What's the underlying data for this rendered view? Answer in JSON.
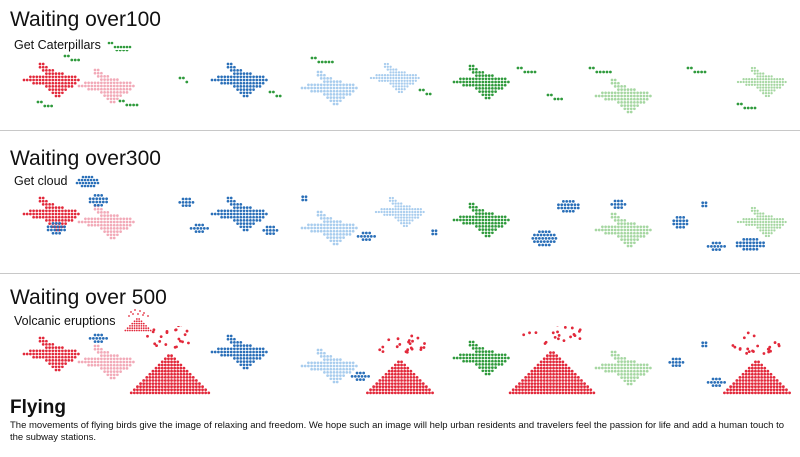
{
  "sections": [
    {
      "title": "Waiting over100",
      "legend": "Get Caterpillars",
      "legend_icon": "caterpillar-icon"
    },
    {
      "title": "Waiting over300",
      "legend": "Get cloud",
      "legend_icon": "cloud-icon"
    },
    {
      "title": "Waiting over 500",
      "legend": "Volcanic eruptions",
      "legend_icon": "volcano-icon"
    }
  ],
  "footer": {
    "title": "Flying",
    "description": "The movements of flying birds give the image of relaxing and freedom. We hope such an image will help urban residents and travelers feel the passion for life and add a human touch to the subway stations."
  },
  "colors": {
    "red": "#e2293b",
    "pink": "#f2aab8",
    "blue": "#2a6fb8",
    "light_blue": "#a9cdee",
    "green": "#2f9a3c",
    "light_green": "#a6d7a2",
    "divider": "#c8c8c8"
  }
}
